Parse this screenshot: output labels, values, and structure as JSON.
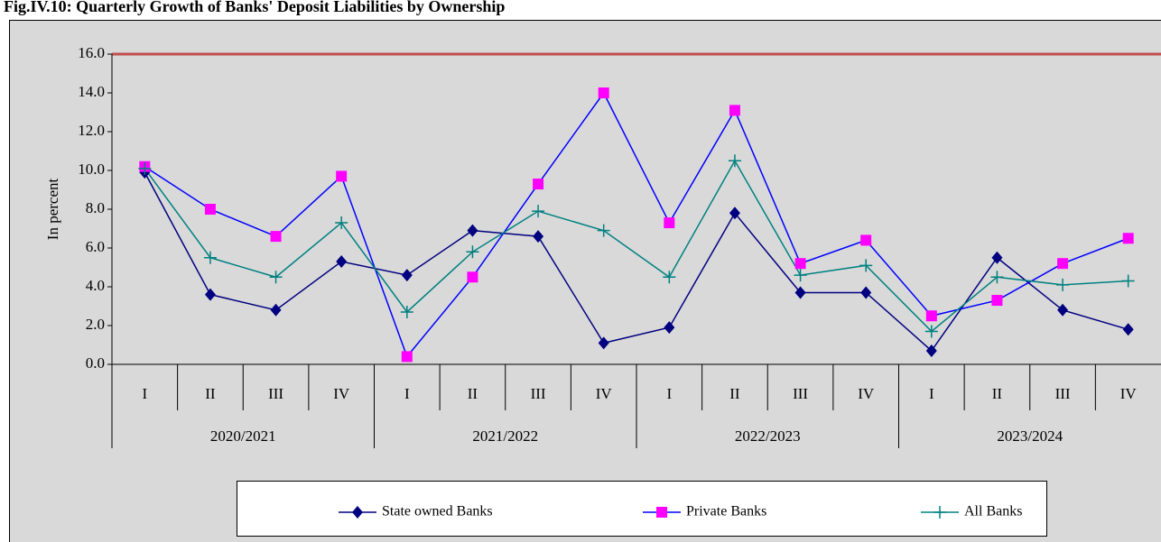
{
  "chart_data": {
    "type": "line",
    "title": "Fig.IV.10: Quarterly Growth of Banks' Deposit Liabilities by Ownership",
    "y_label": "In percent",
    "categories": [
      "I",
      "II",
      "III",
      "IV",
      "I",
      "II",
      "III",
      "IV",
      "I",
      "II",
      "III",
      "IV",
      "I",
      "II",
      "III",
      "IV"
    ],
    "category_groups": [
      "2020/2021",
      "2021/2022",
      "2022/2023",
      "2023/2024"
    ],
    "series": [
      {
        "name": "State owned Banks",
        "color": "#000080",
        "marker": "diamond",
        "marker_color": "#000080",
        "values": [
          9.9,
          3.6,
          2.8,
          5.3,
          4.6,
          6.9,
          6.6,
          1.1,
          1.9,
          7.8,
          3.7,
          3.7,
          0.7,
          5.5,
          2.8,
          1.8
        ]
      },
      {
        "name": "Private Banks",
        "color": "#0000ff",
        "marker": "square",
        "marker_color": "#ff00ff",
        "values": [
          10.2,
          8.0,
          6.6,
          9.7,
          0.4,
          4.5,
          9.3,
          14.0,
          7.3,
          13.1,
          5.2,
          6.4,
          2.5,
          3.3,
          5.2,
          6.5
        ]
      },
      {
        "name": "All Banks",
        "color": "#008080",
        "marker": "plus",
        "marker_color": "#008080",
        "values": [
          10.1,
          5.5,
          4.5,
          7.3,
          2.7,
          5.8,
          7.9,
          6.9,
          4.5,
          10.5,
          4.6,
          5.1,
          1.7,
          4.5,
          4.1,
          4.3
        ]
      }
    ],
    "ylim": [
      0,
      16
    ],
    "yticks": [
      {
        "value": 0,
        "label": "0.0"
      },
      {
        "value": 2,
        "label": "2.0"
      },
      {
        "value": 4,
        "label": "4.0"
      },
      {
        "value": 6,
        "label": "6.0"
      },
      {
        "value": 8,
        "label": "8.0"
      },
      {
        "value": 10,
        "label": "10.0"
      },
      {
        "value": 12,
        "label": "12.0"
      },
      {
        "value": 14,
        "label": "14.0"
      },
      {
        "value": 16,
        "label": "16.0"
      }
    ],
    "grid": false,
    "legend": "bottom"
  }
}
